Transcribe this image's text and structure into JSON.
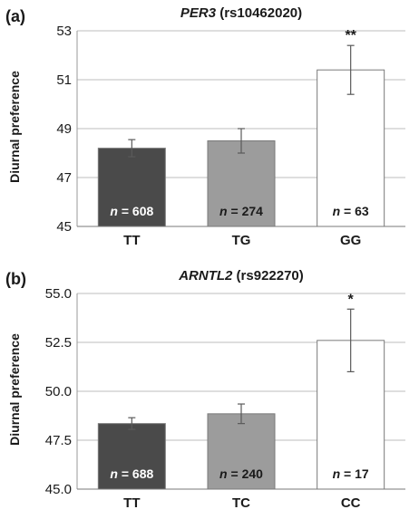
{
  "chart_data": [
    {
      "type": "bar",
      "panel_label": "(a)",
      "title_gene": "PER3",
      "title_snp": "(rs10462020)",
      "ylabel": "Diurnal preference",
      "categories": [
        "TT",
        "TG",
        "GG"
      ],
      "values": [
        48.2,
        48.5,
        51.4
      ],
      "errors": [
        0.35,
        0.5,
        1.0
      ],
      "n_labels": [
        "608",
        "274",
        "63"
      ],
      "n_prefix": "n",
      "significance": [
        "",
        "",
        "**"
      ],
      "ylim": [
        45,
        53
      ],
      "yticks": [
        "45",
        "47",
        "49",
        "51",
        "53"
      ],
      "ytick_values": [
        45,
        47,
        49,
        51,
        53
      ],
      "bar_colors": [
        "#4a4a4a",
        "#9c9c9c",
        "#ffffff"
      ],
      "n_label_colors": [
        "#ffffff",
        "#1a1a1a",
        "#1a1a1a"
      ],
      "grid": true
    },
    {
      "type": "bar",
      "panel_label": "(b)",
      "title_gene": "ARNTL2",
      "title_snp": "(rs922270)",
      "ylabel": "Diurnal preference",
      "categories": [
        "TT",
        "TC",
        "CC"
      ],
      "values": [
        48.35,
        48.85,
        52.6
      ],
      "errors": [
        0.3,
        0.5,
        1.6
      ],
      "n_labels": [
        "688",
        "240",
        "17"
      ],
      "n_prefix": "n",
      "significance": [
        "",
        "",
        "*"
      ],
      "ylim": [
        45.0,
        55.0
      ],
      "yticks": [
        "45.0",
        "47.5",
        "50.0",
        "52.5",
        "55.0"
      ],
      "ytick_values": [
        45.0,
        47.5,
        50.0,
        52.5,
        55.0
      ],
      "bar_colors": [
        "#4a4a4a",
        "#9c9c9c",
        "#ffffff"
      ],
      "n_label_colors": [
        "#ffffff",
        "#1a1a1a",
        "#1a1a1a"
      ],
      "grid": true
    }
  ]
}
